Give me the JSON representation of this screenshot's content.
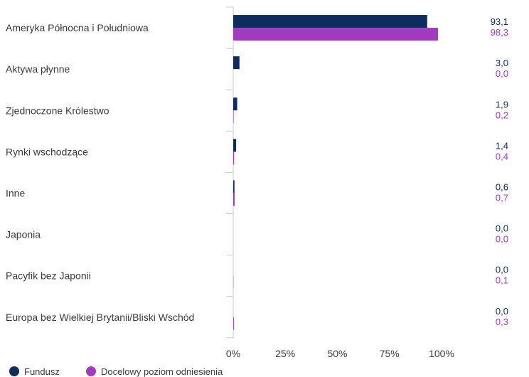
{
  "chart_data": {
    "type": "bar",
    "orientation": "horizontal",
    "categories": [
      "Ameryka Północna i Południowa",
      "Aktywa płynne",
      "Zjednoczone Królestwo",
      "Rynki wschodzące",
      "Inne",
      "Japonia",
      "Pacyfik bez Japonii",
      "Europa bez Wielkiej Brytanii/Bliski Wschód"
    ],
    "series": [
      {
        "name": "Fundusz",
        "color": "#0d2d5e",
        "values": [
          93.1,
          3.0,
          1.9,
          1.4,
          0.6,
          0.0,
          0.0,
          0.0
        ],
        "labels": [
          "93,1",
          "3,0",
          "1,9",
          "1,4",
          "0,6",
          "0,0",
          "0,0",
          "0,0"
        ]
      },
      {
        "name": "Docelowy poziom odniesienia",
        "color": "#a23bc0",
        "values": [
          98.3,
          0.0,
          0.2,
          0.4,
          0.7,
          0.0,
          0.1,
          0.3
        ],
        "labels": [
          "98,3",
          "0,0",
          "0,2",
          "0,4",
          "0,7",
          "0,0",
          "0,1",
          "0,3"
        ]
      }
    ],
    "xticks": [
      "0%",
      "25%",
      "50%",
      "75%",
      "100%"
    ],
    "xtick_values": [
      0,
      25,
      50,
      75,
      100
    ],
    "xlim": [
      0,
      125
    ],
    "grid": false,
    "legend": "bottom-left"
  }
}
